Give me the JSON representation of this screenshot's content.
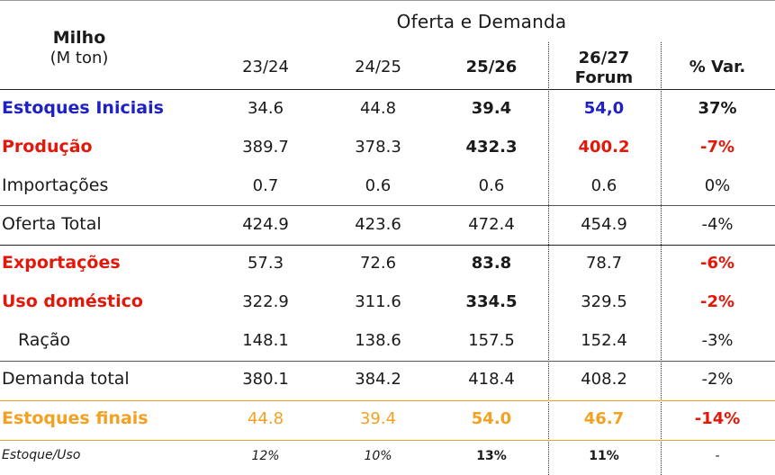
{
  "header": {
    "group_title": "Oferta e Demanda",
    "item_title": "Milho",
    "unit": "(M ton)"
  },
  "chart_data": {
    "type": "table",
    "columns": [
      "23/24",
      "24/25",
      "25/26",
      "26/27 Forum",
      "% Var."
    ],
    "column_lines": [
      [
        "23/24"
      ],
      [
        "24/25"
      ],
      [
        "25/26"
      ],
      [
        "26/27",
        "Forum"
      ],
      [
        "% Var."
      ]
    ],
    "rows": [
      {
        "label": "Estoques Iniciais",
        "values": [
          "34.6",
          "44.8",
          "39.4",
          "54,0",
          "37%"
        ]
      },
      {
        "label": "Produção",
        "values": [
          "389.7",
          "378.3",
          "432.3",
          "400.2",
          "-7%"
        ]
      },
      {
        "label": "Importações",
        "values": [
          "0.7",
          "0.6",
          "0.6",
          "0.6",
          "0%"
        ]
      },
      {
        "label": "Oferta Total",
        "values": [
          "424.9",
          "423.6",
          "472.4",
          "454.9",
          "-4%"
        ]
      },
      {
        "label": "Exportações",
        "values": [
          "57.3",
          "72.6",
          "83.8",
          "78.7",
          "-6%"
        ]
      },
      {
        "label": "Uso doméstico",
        "values": [
          "322.9",
          "311.6",
          "334.5",
          "329.5",
          "-2%"
        ]
      },
      {
        "label": "Ração",
        "values": [
          "148.1",
          "138.6",
          "157.5",
          "152.4",
          "-3%"
        ]
      },
      {
        "label": "Demanda total",
        "values": [
          "380.1",
          "384.2",
          "418.4",
          "408.2",
          "-2%"
        ]
      },
      {
        "label": "Estoques finais",
        "values": [
          "44.8",
          "39.4",
          "54.0",
          "46.7",
          "-14%"
        ]
      },
      {
        "label": "Estoque/Uso",
        "values": [
          "12%",
          "10%",
          "13%",
          "11%",
          "-"
        ]
      }
    ]
  },
  "colors": {
    "blue": "#1f22c2",
    "red": "#e3170a",
    "orange": "#f2a121",
    "text": "#1a1a1a"
  }
}
